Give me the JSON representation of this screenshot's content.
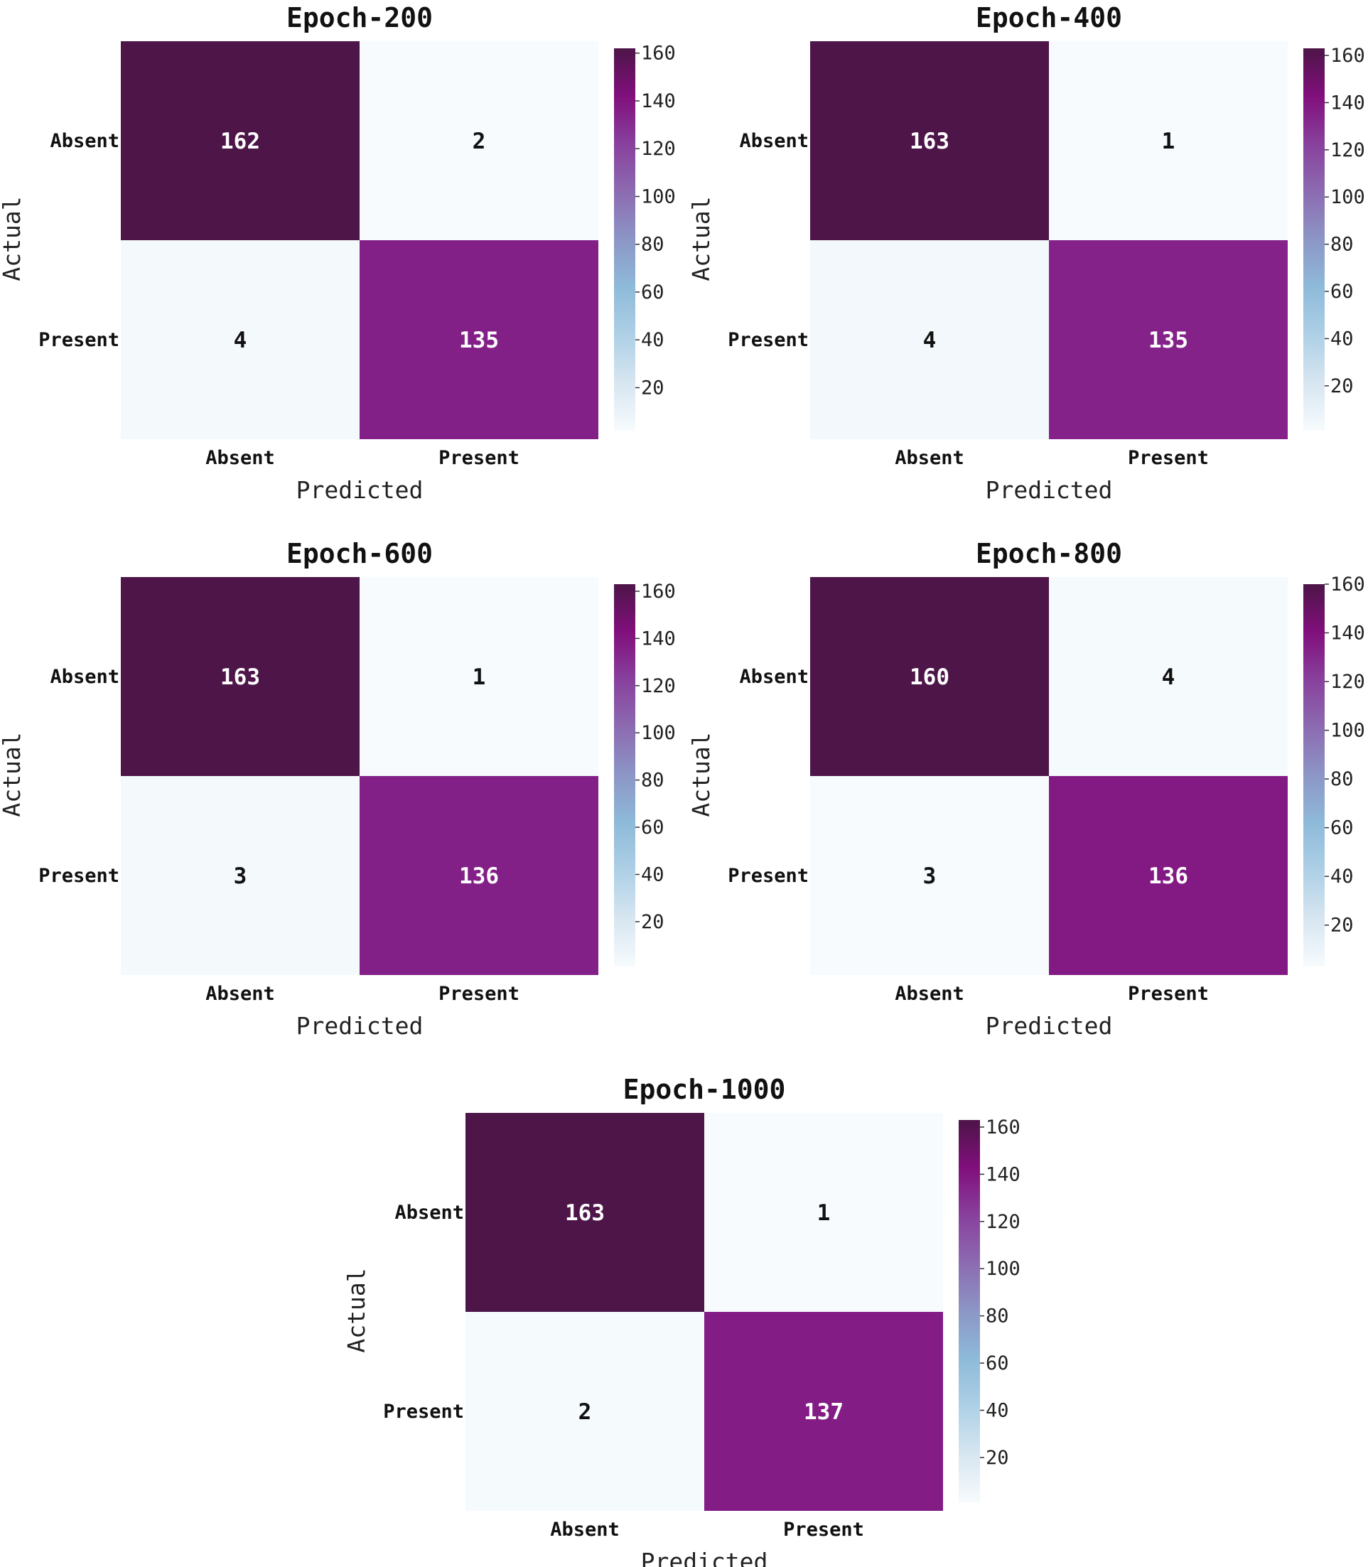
{
  "figure": {
    "colors": {
      "scale": [
        "#f7fbfd",
        "#d7e6f1",
        "#aed0e6",
        "#8ebad9",
        "#8c96c6",
        "#8c6bb1",
        "#88419d",
        "#810f7c",
        "#4d1548"
      ],
      "text_dark": "#111111",
      "text_light": "#ffffff"
    }
  },
  "chart_data": [
    {
      "type": "heatmap",
      "title": "Epoch-200",
      "xlabel": "Predicted",
      "ylabel": "Actual",
      "x_categories": [
        "Absent",
        "Present"
      ],
      "y_categories": [
        "Absent",
        "Present"
      ],
      "values": [
        [
          162,
          2
        ],
        [
          4,
          135
        ]
      ],
      "colorbar": {
        "range": [
          2,
          162
        ],
        "ticks": [
          "20",
          "40",
          "60",
          "80",
          "100",
          "120",
          "140",
          "160"
        ]
      }
    },
    {
      "type": "heatmap",
      "title": "Epoch-400",
      "xlabel": "Predicted",
      "ylabel": "Actual",
      "x_categories": [
        "Absent",
        "Present"
      ],
      "y_categories": [
        "Absent",
        "Present"
      ],
      "values": [
        [
          163,
          1
        ],
        [
          4,
          135
        ]
      ],
      "colorbar": {
        "range": [
          1,
          163
        ],
        "ticks": [
          "20",
          "40",
          "60",
          "80",
          "100",
          "120",
          "140",
          "160"
        ]
      }
    },
    {
      "type": "heatmap",
      "title": "Epoch-600",
      "xlabel": "Predicted",
      "ylabel": "Actual",
      "x_categories": [
        "Absent",
        "Present"
      ],
      "y_categories": [
        "Absent",
        "Present"
      ],
      "values": [
        [
          163,
          1
        ],
        [
          3,
          136
        ]
      ],
      "colorbar": {
        "range": [
          1,
          163
        ],
        "ticks": [
          "20",
          "40",
          "60",
          "80",
          "100",
          "120",
          "140",
          "160"
        ]
      }
    },
    {
      "type": "heatmap",
      "title": "Epoch-800",
      "xlabel": "Predicted",
      "ylabel": "Actual",
      "x_categories": [
        "Absent",
        "Present"
      ],
      "y_categories": [
        "Absent",
        "Present"
      ],
      "values": [
        [
          160,
          4
        ],
        [
          3,
          136
        ]
      ],
      "colorbar": {
        "range": [
          3,
          160
        ],
        "ticks": [
          "20",
          "40",
          "60",
          "80",
          "100",
          "120",
          "140",
          "160"
        ]
      }
    },
    {
      "type": "heatmap",
      "title": "Epoch-1000",
      "xlabel": "Predicted",
      "ylabel": "Actual",
      "x_categories": [
        "Absent",
        "Present"
      ],
      "y_categories": [
        "Absent",
        "Present"
      ],
      "values": [
        [
          163,
          1
        ],
        [
          2,
          137
        ]
      ],
      "colorbar": {
        "range": [
          1,
          163
        ],
        "ticks": [
          "20",
          "40",
          "60",
          "80",
          "100",
          "120",
          "140",
          "160"
        ]
      }
    }
  ]
}
